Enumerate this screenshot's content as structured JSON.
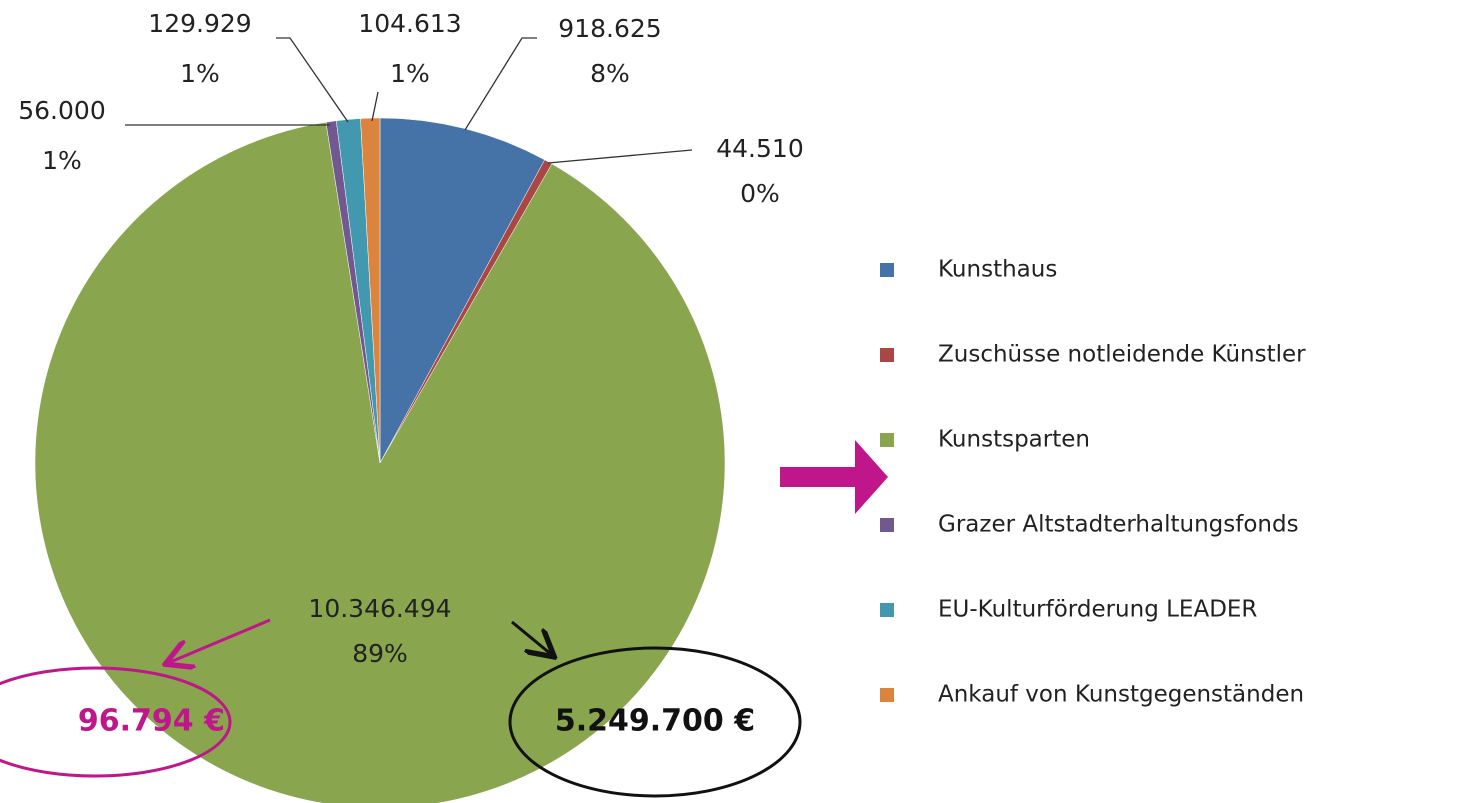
{
  "chart_data": {
    "type": "pie",
    "categories": [
      "Kunsthaus",
      "Zuschüsse notleidende Künstler",
      "Kunstsparten",
      "Grazer Altstadterhaltungsfonds",
      "EU-Kulturförderung  LEADER",
      "Ankauf von Kunstgegenständen"
    ],
    "values": [
      918625,
      44510,
      10346494,
      56000,
      129929,
      104613
    ],
    "value_labels": [
      "918.625",
      "44.510",
      "10.346.494",
      "56.000",
      "129.929",
      "104.613"
    ],
    "percent_labels": [
      "8%",
      "0%",
      "89%",
      "1%",
      "1%",
      "1%"
    ],
    "colors": [
      "#4572A7",
      "#AA4643",
      "#89A54E",
      "#71588F",
      "#4198AF",
      "#DB843D"
    ],
    "legend": "right",
    "annotations": [
      "96.794 €",
      "5.249.700 €"
    ]
  }
}
